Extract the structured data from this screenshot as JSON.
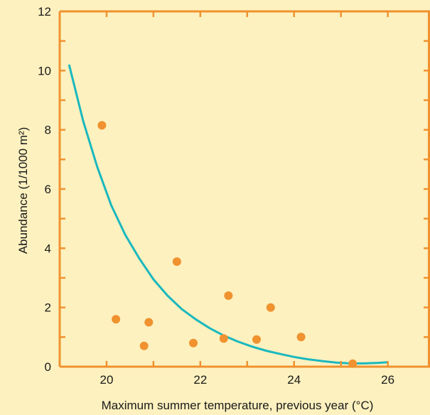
{
  "chart_data": {
    "type": "scatter",
    "title": "",
    "xlabel": "Maximum summer temperature, previous year (°C)",
    "ylabel": "Abundance (1/1000 m²)",
    "xlim": [
      19.0,
      26.9
    ],
    "ylim": [
      0,
      12
    ],
    "xticks": [
      20,
      22,
      24,
      26
    ],
    "yticks": [
      0,
      2,
      4,
      6,
      8,
      10,
      12
    ],
    "grid": false,
    "colors": {
      "background": "#fdf1bf",
      "axis": "#f0922f",
      "points": "#f0922f",
      "fit_line": "#1ab8be"
    },
    "series": [
      {
        "type": "scatter",
        "x": [
          19.9,
          20.2,
          20.8,
          20.9,
          21.5,
          21.85,
          22.5,
          22.6,
          23.2,
          23.5,
          24.15,
          25.25
        ],
        "y": [
          8.15,
          1.6,
          0.7,
          1.5,
          3.55,
          0.8,
          0.95,
          2.4,
          0.92,
          2.0,
          1.0,
          0.1
        ]
      },
      {
        "type": "line",
        "x": [
          19.2,
          19.5,
          19.8,
          20.1,
          20.4,
          20.7,
          21.0,
          21.3,
          21.6,
          21.9,
          22.2,
          22.5,
          22.8,
          23.1,
          23.4,
          23.7,
          24.0,
          24.3,
          24.6,
          24.9,
          25.2,
          25.5,
          25.8,
          26.0
        ],
        "y": [
          10.2,
          8.3,
          6.75,
          5.45,
          4.45,
          3.65,
          2.95,
          2.4,
          1.95,
          1.6,
          1.3,
          1.05,
          0.85,
          0.68,
          0.54,
          0.43,
          0.33,
          0.25,
          0.19,
          0.14,
          0.11,
          0.11,
          0.13,
          0.15
        ]
      }
    ]
  }
}
